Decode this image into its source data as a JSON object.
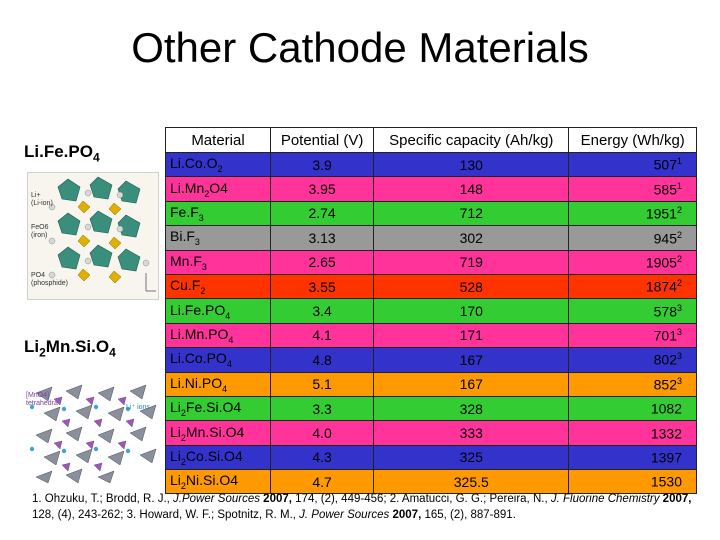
{
  "title": "Other Cathode Materials",
  "left": {
    "label1_main": "Li.Fe.PO",
    "label1_sub": "4",
    "label2_a": "Li",
    "label2_a_sub": "2",
    "label2_b": "Mn.Si.O",
    "label2_b_sub": "4",
    "fig1_labels": {
      "li": "Li+",
      "li_sub": "(Li-ion)",
      "feo6": "FeO6",
      "feo6_sub": "(iron)",
      "po4": "PO4",
      "po4_sub": "(phosphide)"
    },
    "fig2_labels": {
      "mno4_a": "[MnO4]",
      "mno4_b": "tetrahedra",
      "li_ions": "Li⁺ ions"
    }
  },
  "table": {
    "headers": [
      "Material",
      "Potential (V)",
      "Specific capacity (Ah/kg)",
      "Energy (Wh/kg)"
    ],
    "rows": [
      {
        "m": "Li.Co.O",
        "ms": "2",
        "mt": "",
        "pot": "3.9",
        "cap": "130",
        "en": "507",
        "ref": "1",
        "bg": "#3333cc",
        "fg": "#000000"
      },
      {
        "m": "Li.Mn",
        "ms": "2",
        "mt": "O4",
        "pot": "3.95",
        "cap": "148",
        "en": "585",
        "ref": "1",
        "bg": "#ff3399",
        "fg": "#000000"
      },
      {
        "m": "Fe.F",
        "ms": "3",
        "mt": "",
        "pot": "2.74",
        "cap": "712",
        "en": "1951",
        "ref": "2",
        "bg": "#33cc33",
        "fg": "#000000"
      },
      {
        "m": "Bi.F",
        "ms": "3",
        "mt": "",
        "pot": "3.13",
        "cap": "302",
        "en": "945",
        "ref": "2",
        "bg": "#999999",
        "fg": "#000000"
      },
      {
        "m": "Mn.F",
        "ms": "3",
        "mt": "",
        "pot": "2.65",
        "cap": "719",
        "en": "1905",
        "ref": "2",
        "bg": "#ff3399",
        "fg": "#000000"
      },
      {
        "m": "Cu.F",
        "ms": "2",
        "mt": "",
        "pot": "3.55",
        "cap": "528",
        "en": "1874",
        "ref": "2",
        "bg": "#ff3300",
        "fg": "#000000"
      },
      {
        "m": "Li.Fe.PO",
        "ms": "4",
        "mt": "",
        "pot": "3.4",
        "cap": "170",
        "en": "578",
        "ref": "3",
        "bg": "#33cc33",
        "fg": "#000000"
      },
      {
        "m": "Li.Mn.PO",
        "ms": "4",
        "mt": "",
        "pot": "4.1",
        "cap": "171",
        "en": "701",
        "ref": "3",
        "bg": "#ff3399",
        "fg": "#000000"
      },
      {
        "m": "Li.Co.PO",
        "ms": "4",
        "mt": "",
        "pot": "4.8",
        "cap": "167",
        "en": "802",
        "ref": "3",
        "bg": "#3333cc",
        "fg": "#000000"
      },
      {
        "m": "Li.Ni.PO",
        "ms": "4",
        "mt": "",
        "pot": "5.1",
        "cap": "167",
        "en": "852",
        "ref": "3",
        "bg": "#ff9900",
        "fg": "#000000"
      },
      {
        "m": "Li",
        "ms": "2",
        "mt": "Fe.Si.O4",
        "pot": "3.3",
        "cap": "328",
        "en": "1082",
        "ref": "",
        "bg": "#33cc33",
        "fg": "#000000"
      },
      {
        "m": "Li",
        "ms": "2",
        "mt": "Mn.Si.O4",
        "pot": "4.0",
        "cap": "333",
        "en": "1332",
        "ref": "",
        "bg": "#ff3399",
        "fg": "#000000"
      },
      {
        "m": "Li",
        "ms": "2",
        "mt": "Co.Si.O4",
        "pot": "4.3",
        "cap": "325",
        "en": "1397",
        "ref": "",
        "bg": "#3333cc",
        "fg": "#000000"
      },
      {
        "m": "Li",
        "ms": "2",
        "mt": "Ni.Si.O4",
        "pot": "4.7",
        "cap": "325.5",
        "en": "1530",
        "ref": "",
        "bg": "#ff9900",
        "fg": "#000000"
      }
    ]
  },
  "references": {
    "r1": "1. Ohzuku, T.; Brodd, R. J., ",
    "r1_j": "J.Power Sources",
    "r1_y": " 2007,",
    "r1_rest": " 174, (2), 449-456; 2. Amatucci, G. G.; Pereira, N., ",
    "r2_j": "J. Fluorine Chemistry",
    "r2_y": " 2007,",
    "r2_rest": " 128, (4), 243-262; 3. Howard, W. F.; Spotnitz, R. M., ",
    "r3_j": "J. Power Sources",
    "r3_y": " 2007,",
    "r3_rest": " 165, (2), 887-891."
  }
}
